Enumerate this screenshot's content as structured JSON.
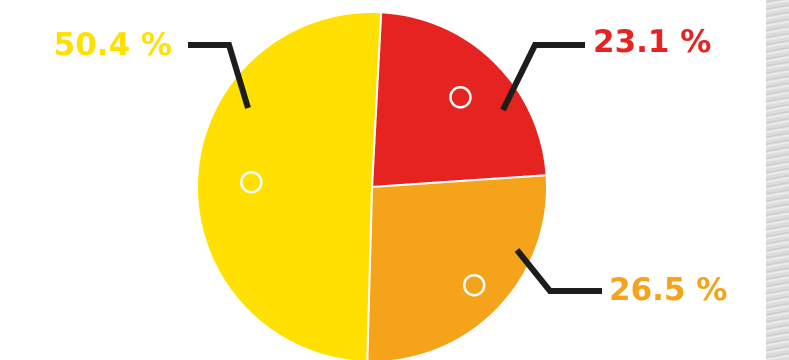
{
  "chart_data": {
    "type": "pie",
    "slices": [
      {
        "label": "23.1 %",
        "value": 23.1,
        "color": "#e52421"
      },
      {
        "label": "26.5 %",
        "value": 26.5,
        "color": "#f5a31a"
      },
      {
        "label": "50.4 %",
        "value": 50.4,
        "color": "#ffe000"
      }
    ],
    "legend": "none",
    "title": "",
    "start_angle_deg": 3
  },
  "colors": {
    "leader_line": "#1d1d1b",
    "slice_border": "#ffffff",
    "background": "#ffffff"
  }
}
